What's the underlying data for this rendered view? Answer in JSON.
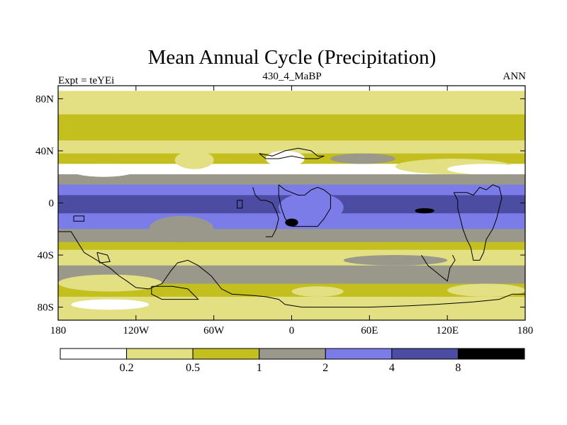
{
  "chart_data": {
    "type": "heatmap",
    "title": "Mean Annual Cycle (Precipitation)",
    "subtitle_left": "Expt = teYEi",
    "subtitle_center": "430_4_MaBP",
    "subtitle_right": "ANN",
    "xlim": [
      -180,
      180
    ],
    "ylim": [
      -90,
      90
    ],
    "x_ticks": [
      {
        "value": -180,
        "label": "180"
      },
      {
        "value": -120,
        "label": "120W"
      },
      {
        "value": -60,
        "label": "60W"
      },
      {
        "value": 0,
        "label": "0"
      },
      {
        "value": 60,
        "label": "60E"
      },
      {
        "value": 120,
        "label": "120E"
      },
      {
        "value": 180,
        "label": "180"
      }
    ],
    "y_ticks": [
      {
        "value": 80,
        "label": "80N"
      },
      {
        "value": 40,
        "label": "40N"
      },
      {
        "value": 0,
        "label": "0"
      },
      {
        "value": -40,
        "label": "40S"
      },
      {
        "value": -80,
        "label": "80S"
      }
    ],
    "levels": [
      0.2,
      0.5,
      1,
      2,
      4,
      8
    ],
    "level_labels": [
      "0.2",
      "0.5",
      "1",
      "2",
      "4",
      "8"
    ],
    "colors": [
      "#ffffff",
      "#e2e083",
      "#c2bf1f",
      "#99988a",
      "#7c7ce8",
      "#4c4ca2",
      "#000000"
    ],
    "latitude_bands": [
      {
        "lat_from": 90,
        "lat_to": 86,
        "class": 0
      },
      {
        "lat_from": 86,
        "lat_to": 76,
        "class": 1
      },
      {
        "lat_from": 76,
        "lat_to": 68,
        "class": 1
      },
      {
        "lat_from": 68,
        "lat_to": 48,
        "class": 2
      },
      {
        "lat_from": 48,
        "lat_to": 38,
        "class": 1
      },
      {
        "lat_from": 38,
        "lat_to": 30,
        "class": 2
      },
      {
        "lat_from": 30,
        "lat_to": 22,
        "class": 0
      },
      {
        "lat_from": 22,
        "lat_to": 14,
        "class": 3
      },
      {
        "lat_from": 14,
        "lat_to": 6,
        "class": 4
      },
      {
        "lat_from": 6,
        "lat_to": -8,
        "class": 5
      },
      {
        "lat_from": -8,
        "lat_to": -20,
        "class": 4
      },
      {
        "lat_from": -20,
        "lat_to": -30,
        "class": 3
      },
      {
        "lat_from": -30,
        "lat_to": -36,
        "class": 2
      },
      {
        "lat_from": -36,
        "lat_to": -48,
        "class": 1
      },
      {
        "lat_from": -48,
        "lat_to": -62,
        "class": 3
      },
      {
        "lat_from": -62,
        "lat_to": -72,
        "class": 2
      },
      {
        "lat_from": -72,
        "lat_to": -80,
        "class": 1
      },
      {
        "lat_from": -80,
        "lat_to": -90,
        "class": 1
      }
    ],
    "patches": [
      {
        "lon": [
          -170,
          -120
        ],
        "lat": [
          30,
          20
        ],
        "class": 0
      },
      {
        "lon": [
          -90,
          -60
        ],
        "lat": [
          40,
          26
        ],
        "class": 1
      },
      {
        "lon": [
          -60,
          -25
        ],
        "lat": [
          30,
          22
        ],
        "class": 0
      },
      {
        "lon": [
          -20,
          10
        ],
        "lat": [
          40,
          28
        ],
        "class": 0
      },
      {
        "lon": [
          30,
          80
        ],
        "lat": [
          38,
          30
        ],
        "class": 3
      },
      {
        "lon": [
          80,
          170
        ],
        "lat": [
          34,
          22
        ],
        "class": 1
      },
      {
        "lon": [
          120,
          180
        ],
        "lat": [
          30,
          22
        ],
        "class": 0
      },
      {
        "lon": [
          -10,
          40
        ],
        "lat": [
          8,
          -15
        ],
        "class": 4
      },
      {
        "lon": [
          -5,
          5
        ],
        "lat": [
          -12,
          -18
        ],
        "class": 6
      },
      {
        "lon": [
          95,
          110
        ],
        "lat": [
          -4,
          -8
        ],
        "class": 6
      },
      {
        "lon": [
          -110,
          -60
        ],
        "lat": [
          -10,
          -30
        ],
        "class": 3
      },
      {
        "lon": [
          40,
          120
        ],
        "lat": [
          -40,
          -48
        ],
        "class": 3
      },
      {
        "lon": [
          -180,
          -100
        ],
        "lat": [
          -55,
          -68
        ],
        "class": 1
      },
      {
        "lon": [
          120,
          180
        ],
        "lat": [
          -62,
          -72
        ],
        "class": 1
      },
      {
        "lon": [
          -170,
          -110
        ],
        "lat": [
          -74,
          -82
        ],
        "class": 0
      },
      {
        "lon": [
          0,
          40
        ],
        "lat": [
          -64,
          -72
        ],
        "class": 1
      }
    ],
    "coastlines": [
      [
        [
          -180,
          -22
        ],
        [
          -170,
          -22
        ],
        [
          -165,
          -30
        ],
        [
          -160,
          -38
        ],
        [
          -150,
          -44
        ],
        [
          -140,
          -50
        ],
        [
          -133,
          -56
        ],
        [
          -127,
          -60
        ],
        [
          -120,
          -65
        ],
        [
          -110,
          -66
        ],
        [
          -100,
          -62
        ],
        [
          -93,
          -52
        ],
        [
          -88,
          -46
        ],
        [
          -80,
          -44
        ],
        [
          -72,
          -48
        ],
        [
          -62,
          -56
        ],
        [
          -54,
          -66
        ],
        [
          -46,
          -70
        ],
        [
          -30,
          -71
        ],
        [
          -20,
          -72
        ],
        [
          -10,
          -74
        ],
        [
          -5,
          -78
        ],
        [
          8,
          -80
        ],
        [
          30,
          -80
        ],
        [
          60,
          -80
        ],
        [
          90,
          -79
        ],
        [
          110,
          -78
        ],
        [
          140,
          -76
        ],
        [
          160,
          -74
        ],
        [
          170,
          -70
        ],
        [
          180,
          -70
        ]
      ],
      [
        [
          -30,
          12
        ],
        [
          -28,
          6
        ],
        [
          -24,
          2
        ],
        [
          -20,
          2
        ],
        [
          -15,
          0
        ],
        [
          -12,
          -6
        ],
        [
          -10,
          -12
        ],
        [
          -12,
          -20
        ],
        [
          -15,
          -26
        ],
        [
          -20,
          -26
        ]
      ],
      [
        [
          -10,
          14
        ],
        [
          -5,
          10
        ],
        [
          5,
          6
        ],
        [
          10,
          6
        ],
        [
          15,
          10
        ],
        [
          20,
          12
        ],
        [
          25,
          10
        ],
        [
          30,
          6
        ],
        [
          30,
          -4
        ],
        [
          25,
          -12
        ],
        [
          20,
          -18
        ],
        [
          10,
          -18
        ],
        [
          0,
          -18
        ],
        [
          -5,
          -12
        ],
        [
          -8,
          -4
        ],
        [
          -10,
          6
        ],
        [
          -10,
          14
        ]
      ],
      [
        [
          -25,
          38
        ],
        [
          -15,
          36
        ],
        [
          -5,
          40
        ],
        [
          5,
          42
        ],
        [
          15,
          40
        ],
        [
          20,
          36
        ],
        [
          25,
          36
        ],
        [
          20,
          34
        ],
        [
          10,
          34
        ],
        [
          0,
          36
        ],
        [
          -10,
          34
        ],
        [
          -20,
          34
        ],
        [
          -25,
          38
        ]
      ],
      [
        [
          125,
          8
        ],
        [
          128,
          2
        ],
        [
          128,
          -4
        ],
        [
          130,
          -12
        ],
        [
          132,
          -20
        ],
        [
          135,
          -28
        ],
        [
          138,
          -34
        ],
        [
          140,
          -44
        ],
        [
          145,
          -44
        ],
        [
          148,
          -38
        ],
        [
          150,
          -28
        ],
        [
          155,
          -20
        ],
        [
          158,
          -12
        ],
        [
          160,
          -4
        ],
        [
          162,
          4
        ],
        [
          160,
          12
        ],
        [
          155,
          14
        ],
        [
          150,
          10
        ],
        [
          145,
          12
        ],
        [
          140,
          6
        ],
        [
          135,
          8
        ],
        [
          125,
          8
        ]
      ],
      [
        [
          100,
          -40
        ],
        [
          105,
          -48
        ],
        [
          110,
          -52
        ],
        [
          115,
          -56
        ],
        [
          120,
          -60
        ],
        [
          122,
          -50
        ],
        [
          126,
          -44
        ],
        [
          124,
          -40
        ]
      ],
      [
        [
          -150,
          -38
        ],
        [
          -142,
          -40
        ],
        [
          -140,
          -45
        ],
        [
          -148,
          -46
        ],
        [
          -150,
          -38
        ]
      ],
      [
        [
          -168,
          -10
        ],
        [
          -160,
          -10
        ],
        [
          -160,
          -14
        ],
        [
          -168,
          -14
        ],
        [
          -168,
          -10
        ]
      ],
      [
        [
          -42,
          2
        ],
        [
          -38,
          2
        ],
        [
          -38,
          -4
        ],
        [
          -42,
          -4
        ],
        [
          -42,
          2
        ]
      ],
      [
        [
          -108,
          -64
        ],
        [
          -92,
          -64
        ],
        [
          -80,
          -66
        ],
        [
          -72,
          -74
        ],
        [
          -100,
          -74
        ],
        [
          -108,
          -70
        ],
        [
          -108,
          -64
        ]
      ]
    ]
  }
}
